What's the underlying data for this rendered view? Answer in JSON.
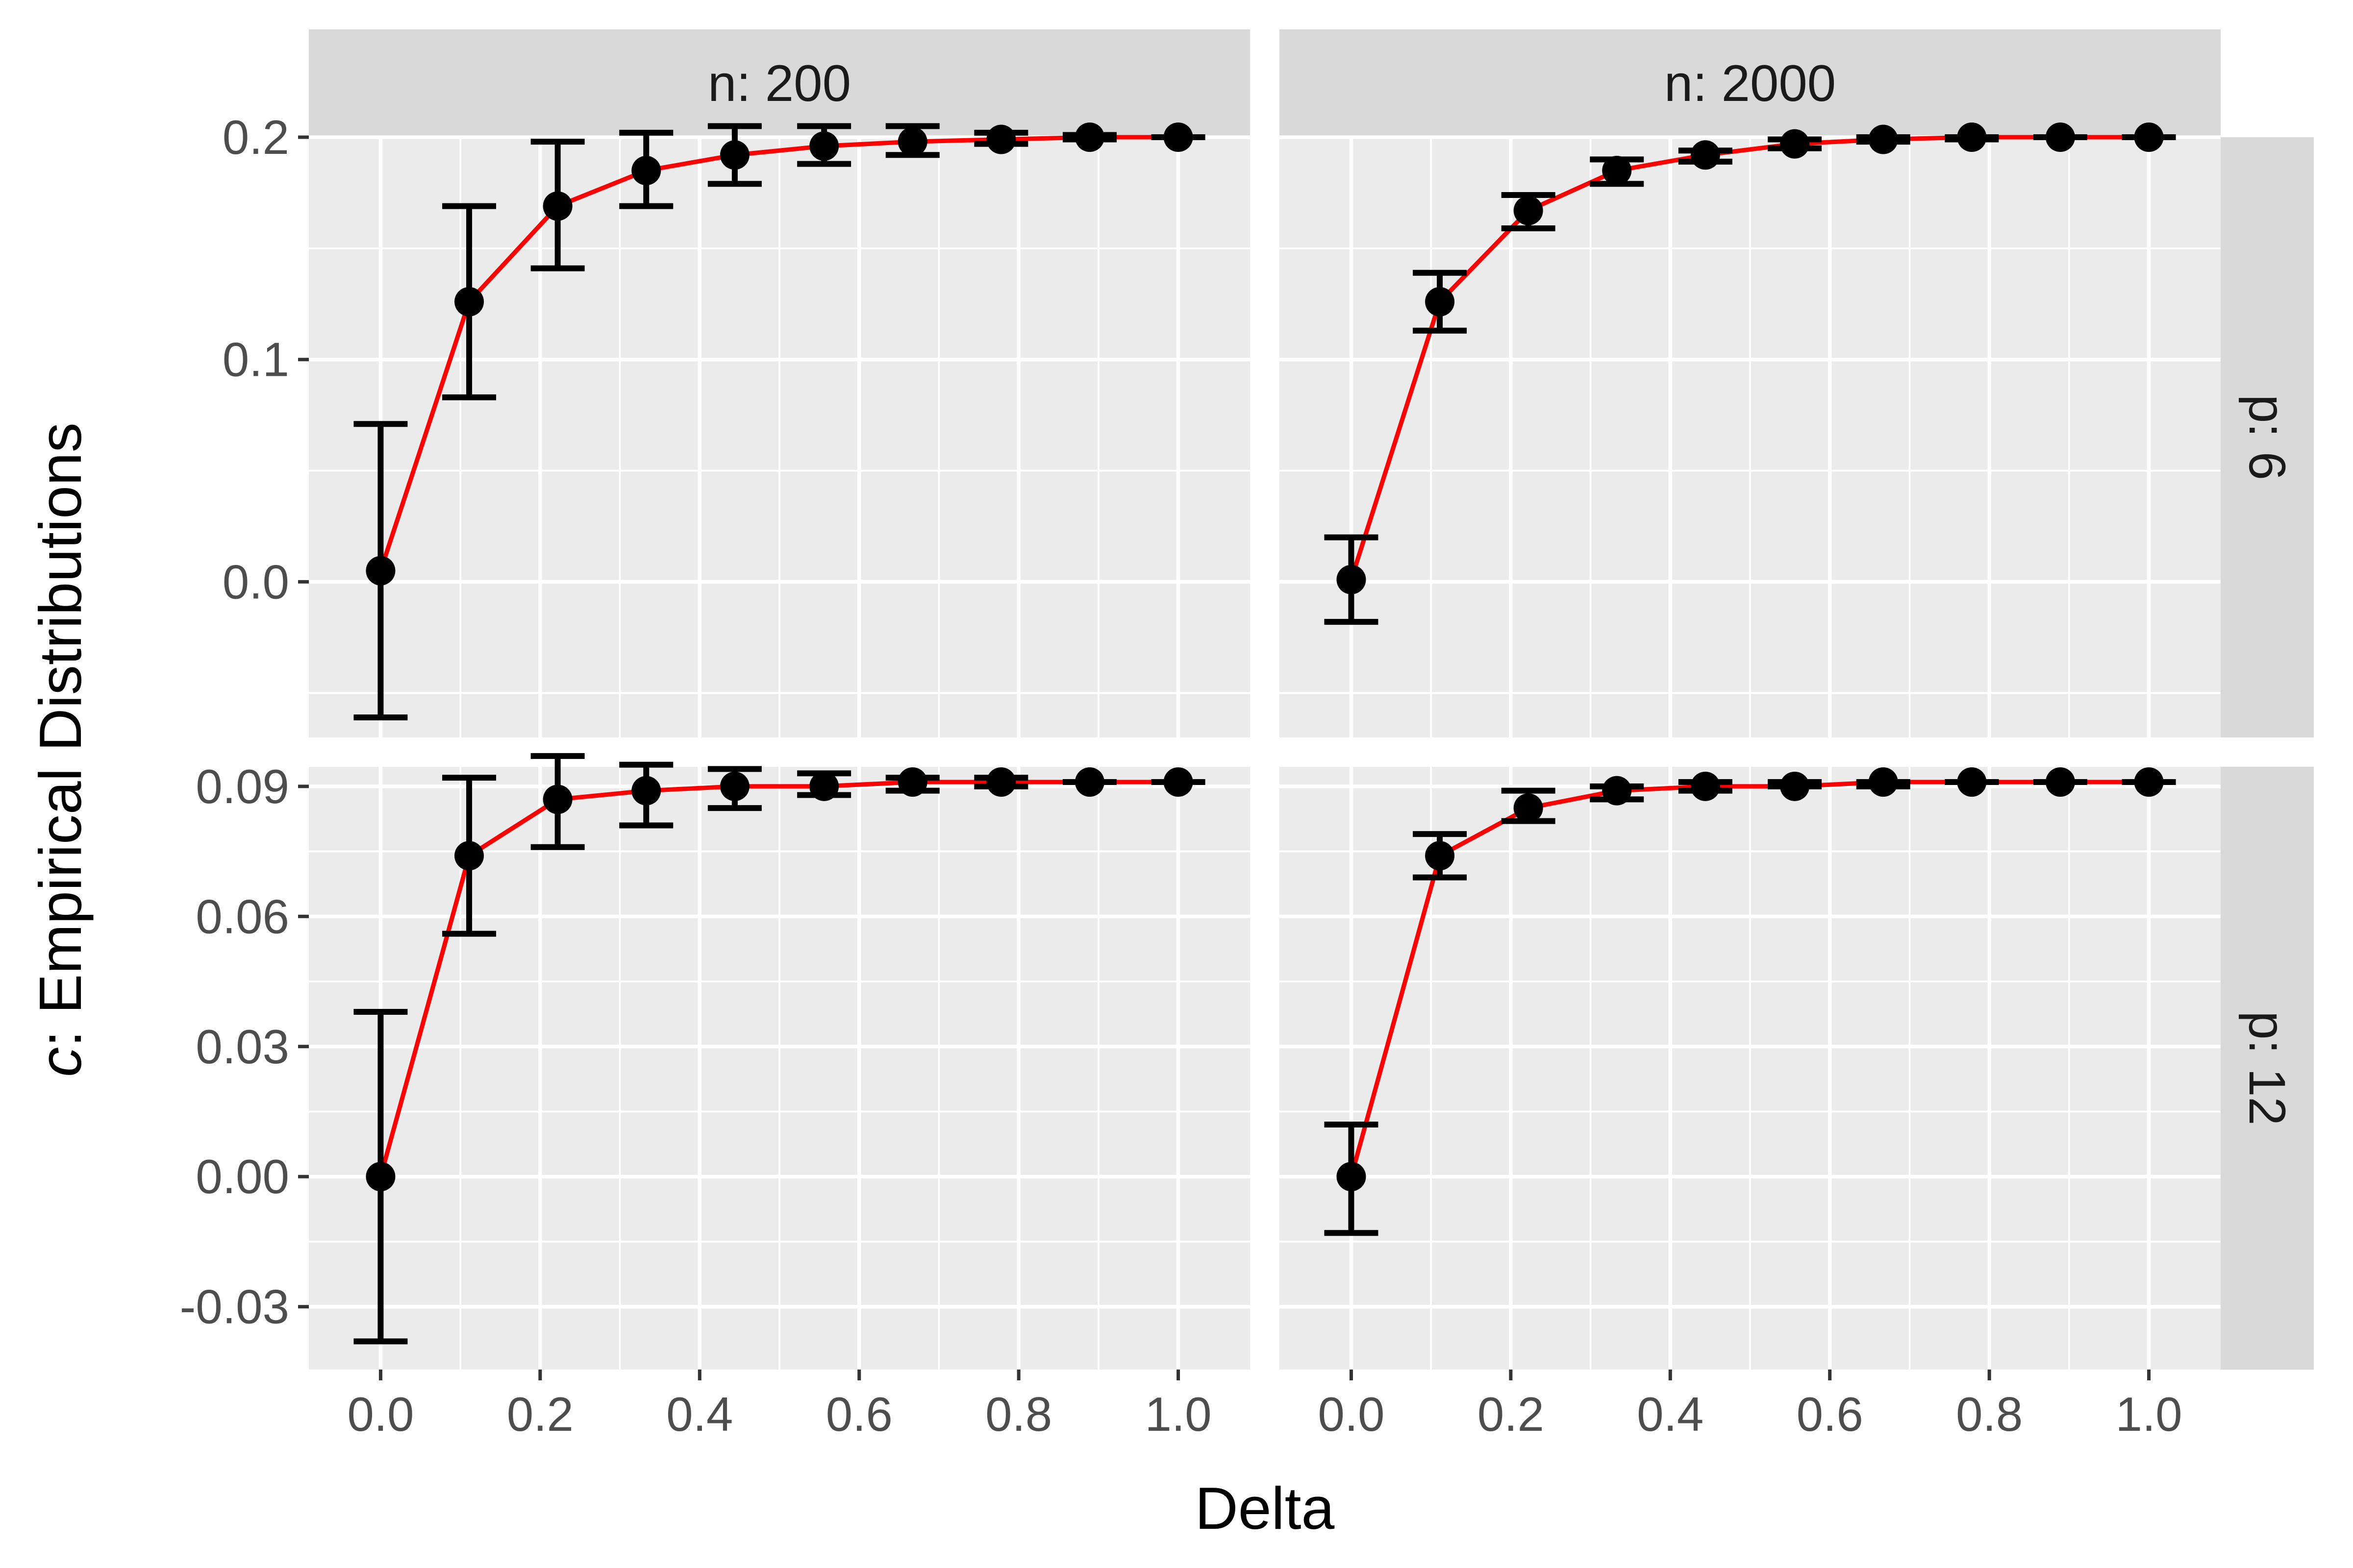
{
  "chart_data": {
    "type": "scatter",
    "facets": {
      "columns": [
        "n: 200",
        "n: 2000"
      ],
      "rows": [
        "p: 6",
        "p: 12"
      ]
    },
    "xlabel": "Delta",
    "ylabel_italic": "c",
    "ylabel_rest": ": Empirical Distributions",
    "colors": {
      "line": "#FF0000",
      "points": "#000000",
      "panel": "#EBEBEB",
      "strip": "#D9D9D9"
    },
    "x_ticks": [
      "0.0",
      "0.2",
      "0.4",
      "0.6",
      "0.8",
      "1.0"
    ],
    "x_tick_values": [
      0,
      0.2,
      0.4,
      0.6,
      0.8,
      1.0
    ],
    "xlim": [
      -0.09,
      1.09
    ],
    "rows_axes": [
      {
        "ylim": [
          -0.07,
          0.2
        ],
        "y_ticks": [
          "0.0",
          "0.1",
          "0.2"
        ],
        "y_tick_values": [
          0,
          0.1,
          0.2
        ],
        "y_minor": [
          -0.05,
          0.05,
          0.15
        ]
      },
      {
        "ylim": [
          -0.0445,
          0.0945
        ],
        "y_ticks": [
          "-0.03",
          "0.00",
          "0.03",
          "0.06",
          "0.09"
        ],
        "y_tick_values": [
          -0.03,
          0,
          0.03,
          0.06,
          0.09
        ],
        "y_minor": [
          -0.015,
          0.015,
          0.045,
          0.075
        ]
      }
    ],
    "x": [
      0,
      0.111,
      0.222,
      0.333,
      0.444,
      0.556,
      0.667,
      0.778,
      0.889,
      1.0
    ],
    "panels": [
      {
        "row": 0,
        "col": 0,
        "mean": [
          0.005,
          0.126,
          0.169,
          0.185,
          0.192,
          0.196,
          0.198,
          0.199,
          0.2,
          0.2
        ],
        "lower": [
          -0.061,
          0.083,
          0.141,
          0.169,
          0.179,
          0.188,
          0.192,
          0.197,
          0.199,
          0.2
        ],
        "upper": [
          0.071,
          0.169,
          0.198,
          0.202,
          0.205,
          0.205,
          0.205,
          0.202,
          0.201,
          0.2
        ]
      },
      {
        "row": 0,
        "col": 1,
        "mean": [
          0.001,
          0.126,
          0.167,
          0.185,
          0.192,
          0.197,
          0.199,
          0.2,
          0.2,
          0.2
        ],
        "lower": [
          -0.018,
          0.113,
          0.159,
          0.179,
          0.189,
          0.195,
          0.198,
          0.199,
          0.2,
          0.2
        ],
        "upper": [
          0.02,
          0.139,
          0.174,
          0.19,
          0.194,
          0.199,
          0.2,
          0.2,
          0.2,
          0.2
        ]
      },
      {
        "row": 1,
        "col": 0,
        "mean": [
          0.0,
          0.074,
          0.087,
          0.089,
          0.09,
          0.09,
          0.091,
          0.091,
          0.091,
          0.091
        ],
        "lower": [
          -0.038,
          0.056,
          0.076,
          0.081,
          0.085,
          0.088,
          0.089,
          0.09,
          0.091,
          0.091
        ],
        "upper": [
          0.038,
          0.092,
          0.097,
          0.095,
          0.094,
          0.093,
          0.092,
          0.092,
          0.091,
          0.091
        ]
      },
      {
        "row": 1,
        "col": 1,
        "mean": [
          0.0,
          0.074,
          0.085,
          0.089,
          0.09,
          0.09,
          0.091,
          0.091,
          0.091,
          0.091
        ],
        "lower": [
          -0.013,
          0.069,
          0.082,
          0.087,
          0.089,
          0.09,
          0.09,
          0.091,
          0.091,
          0.091
        ],
        "upper": [
          0.012,
          0.079,
          0.089,
          0.09,
          0.091,
          0.091,
          0.091,
          0.091,
          0.091,
          0.091
        ]
      }
    ]
  }
}
